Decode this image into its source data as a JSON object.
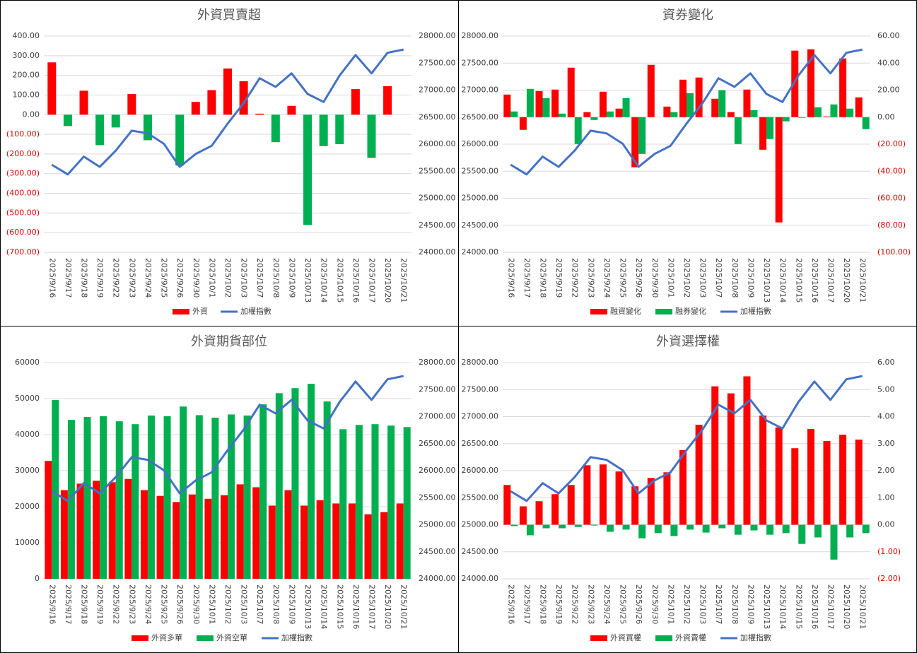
{
  "chart_data": [
    {
      "type": "combo",
      "title": "外資買賣超",
      "grid": true,
      "categories": [
        "2025/9/16",
        "2025/9/17",
        "2025/9/18",
        "2025/9/19",
        "2025/9/22",
        "2025/9/23",
        "2025/9/24",
        "2025/9/25",
        "2025/9/26",
        "2025/9/30",
        "2025/10/1",
        "2025/10/2",
        "2025/10/3",
        "2025/10/7",
        "2025/10/8",
        "2025/10/9",
        "2025/10/13",
        "2025/10/14",
        "2025/10/15",
        "2025/10/16",
        "2025/10/17",
        "2025/10/20",
        "2025/10/21"
      ],
      "ylim": [
        -700,
        400
      ],
      "yticks": [
        {
          "value": -700,
          "label": "(700.00)"
        },
        {
          "value": -600,
          "label": "(600.00)"
        },
        {
          "value": -500,
          "label": "(500.00)"
        },
        {
          "value": -400,
          "label": "(400.00)"
        },
        {
          "value": -300,
          "label": "(300.00)"
        },
        {
          "value": -200,
          "label": "(200.00)"
        },
        {
          "value": -100,
          "label": "(100.00)"
        },
        {
          "value": 0,
          "label": "0.00"
        },
        {
          "value": 100,
          "label": "100.00"
        },
        {
          "value": 200,
          "label": "200.00"
        },
        {
          "value": 300,
          "label": "300.00"
        },
        {
          "value": 400,
          "label": "400.00"
        }
      ],
      "y2lim": [
        24000,
        28000
      ],
      "y2ticks": [
        {
          "value": 24000,
          "label": "24000.00"
        },
        {
          "value": 24500,
          "label": "24500.00"
        },
        {
          "value": 25000,
          "label": "25000.00"
        },
        {
          "value": 25500,
          "label": "25500.00"
        },
        {
          "value": 26000,
          "label": "26000.00"
        },
        {
          "value": 26500,
          "label": "26500.00"
        },
        {
          "value": 27000,
          "label": "27000.00"
        },
        {
          "value": 27500,
          "label": "27500.00"
        },
        {
          "value": 28000,
          "label": "28000.00"
        }
      ],
      "series": [
        {
          "name": "外資",
          "type": "bar",
          "axis": "y",
          "color": "#ff0000",
          "negative_color": "#00b050",
          "values": [
            266,
            -58,
            122,
            -155,
            -65,
            105,
            -130,
            0,
            -259,
            65,
            125,
            235,
            170,
            5,
            -140,
            45,
            -561,
            -160,
            -150,
            130,
            -220,
            145,
            0
          ]
        },
        {
          "name": "加權指數",
          "type": "line",
          "axis": "y2",
          "color": "#4472c4",
          "values": [
            25620,
            25440,
            25770,
            25580,
            25880,
            26250,
            26200,
            26010,
            25580,
            25820,
            25970,
            26380,
            26760,
            27220,
            27060,
            27310,
            26930,
            26780,
            27270,
            27650,
            27310,
            27690,
            27750
          ]
        }
      ]
    },
    {
      "type": "combo",
      "title": "資券變化",
      "grid": true,
      "categories": [
        "2025/9/16",
        "2025/9/17",
        "2025/9/18",
        "2025/9/19",
        "2025/9/22",
        "2025/9/23",
        "2025/9/24",
        "2025/9/25",
        "2025/9/26",
        "2025/9/30",
        "2025/10/1",
        "2025/10/2",
        "2025/10/3",
        "2025/10/7",
        "2025/10/8",
        "2025/10/9",
        "2025/10/13",
        "2025/10/14",
        "2025/10/15",
        "2025/10/16",
        "2025/10/17",
        "2025/10/20",
        "2025/10/21"
      ],
      "ylim": [
        24000,
        28000
      ],
      "yticks": [
        {
          "value": 24000,
          "label": "24000.00"
        },
        {
          "value": 24500,
          "label": "24500.00"
        },
        {
          "value": 25000,
          "label": "25000.00"
        },
        {
          "value": 25500,
          "label": "25500.00"
        },
        {
          "value": 26000,
          "label": "26000.00"
        },
        {
          "value": 26500,
          "label": "26500.00"
        },
        {
          "value": 27000,
          "label": "27000.00"
        },
        {
          "value": 27500,
          "label": "27500.00"
        },
        {
          "value": 28000,
          "label": "28000.00"
        }
      ],
      "y2lim": [
        -100,
        60
      ],
      "y2ticks": [
        {
          "value": -100,
          "label": "(100.00)"
        },
        {
          "value": -80,
          "label": "(80.00)"
        },
        {
          "value": -60,
          "label": "(60.00)"
        },
        {
          "value": -40,
          "label": "(40.00)"
        },
        {
          "value": -20,
          "label": "(20.00)"
        },
        {
          "value": 0,
          "label": "0.00"
        },
        {
          "value": 20,
          "label": "20.00"
        },
        {
          "value": 40,
          "label": "40.00"
        },
        {
          "value": 60,
          "label": "60.00"
        }
      ],
      "series": [
        {
          "name": "融資變化",
          "type": "bar",
          "axis": "y2",
          "color": "#ff0000",
          "values": [
            16.7,
            -9.4,
            19.3,
            20.4,
            36.6,
            3.7,
            18.8,
            6.3,
            -37.1,
            38.7,
            7.8,
            27.7,
            29.3,
            13.6,
            3.7,
            20.4,
            -24.1,
            -77.9,
            49.2,
            50.2,
            0.5,
            43.4,
            14.6
          ]
        },
        {
          "name": "融券變化",
          "type": "bar",
          "axis": "y2",
          "color": "#00b050",
          "values": [
            4.2,
            20.9,
            14.1,
            2.6,
            -19.9,
            -2.1,
            4.2,
            14.1,
            -27.2,
            0,
            3.7,
            17.8,
            0,
            19.9,
            -19.9,
            5.2,
            -16.2,
            -3.1,
            -0.5,
            7.3,
            9.4,
            6.3,
            -8.9
          ]
        },
        {
          "name": "加權指數",
          "type": "line",
          "axis": "y",
          "color": "#4472c4",
          "values": [
            25620,
            25440,
            25770,
            25580,
            25880,
            26250,
            26200,
            26010,
            25580,
            25820,
            25970,
            26380,
            26760,
            27220,
            27060,
            27310,
            26930,
            26780,
            27270,
            27650,
            27310,
            27690,
            27750
          ]
        }
      ]
    },
    {
      "type": "combo",
      "title": "外資期貨部位",
      "grid": true,
      "categories": [
        "2025/9/16",
        "2025/9/17",
        "2025/9/18",
        "2025/9/19",
        "2025/9/22",
        "2025/9/23",
        "2025/9/24",
        "2025/9/25",
        "2025/9/26",
        "2025/9/30",
        "2025/10/1",
        "2025/10/2",
        "2025/10/3",
        "2025/10/7",
        "2025/10/8",
        "2025/10/9",
        "2025/10/13",
        "2025/10/14",
        "2025/10/15",
        "2025/10/16",
        "2025/10/17",
        "2025/10/20",
        "2025/10/21"
      ],
      "ylim": [
        0,
        60000
      ],
      "yticks": [
        0,
        10000,
        20000,
        30000,
        40000,
        50000,
        60000
      ],
      "y2lim": [
        24000,
        28000
      ],
      "y2ticks": [
        {
          "value": 24000,
          "label": "24000.00"
        },
        {
          "value": 24500,
          "label": "24500.00"
        },
        {
          "value": 25000,
          "label": "25000.00"
        },
        {
          "value": 25500,
          "label": "25500.00"
        },
        {
          "value": 26000,
          "label": "26000.00"
        },
        {
          "value": 26500,
          "label": "26500.00"
        },
        {
          "value": 27000,
          "label": "27000.00"
        },
        {
          "value": 27500,
          "label": "27500.00"
        },
        {
          "value": 28000,
          "label": "28000.00"
        }
      ],
      "series": [
        {
          "name": "外資多單",
          "type": "bar",
          "axis": "y",
          "color": "#ff0000",
          "values": [
            32700,
            24600,
            26400,
            27200,
            26800,
            27700,
            24600,
            23000,
            21300,
            23400,
            22200,
            23200,
            26200,
            25400,
            20300,
            24600,
            20300,
            21800,
            20900,
            20900,
            17900,
            18500,
            20900
          ]
        },
        {
          "name": "外資空單",
          "type": "bar",
          "axis": "y",
          "color": "#00b050",
          "values": [
            49600,
            44100,
            44900,
            45100,
            43700,
            42900,
            45300,
            45100,
            47800,
            45400,
            44700,
            45600,
            45300,
            48400,
            51500,
            52900,
            54100,
            49200,
            41500,
            42700,
            42900,
            42500,
            42100
          ]
        },
        {
          "name": "加權指數",
          "type": "line",
          "axis": "y2",
          "color": "#4472c4",
          "values": [
            25620,
            25440,
            25770,
            25580,
            25880,
            26250,
            26200,
            26010,
            25580,
            25820,
            25970,
            26380,
            26760,
            27220,
            27060,
            27310,
            26930,
            26780,
            27270,
            27650,
            27310,
            27690,
            27750
          ]
        }
      ]
    },
    {
      "type": "combo",
      "title": "外資選擇權",
      "grid": true,
      "categories": [
        "2025/9/16",
        "2025/9/17",
        "2025/9/18",
        "2025/9/19",
        "2025/9/22",
        "2025/9/23",
        "2025/9/24",
        "2025/9/25",
        "2025/9/26",
        "2025/9/30",
        "2025/10/1",
        "2025/10/2",
        "2025/10/3",
        "2025/10/7",
        "2025/10/8",
        "2025/10/9",
        "2025/10/13",
        "2025/10/14",
        "2025/10/15",
        "2025/10/16",
        "2025/10/17",
        "2025/10/20",
        "2025/10/21"
      ],
      "ylim": [
        24000,
        28000
      ],
      "yticks": [
        {
          "value": 24000,
          "label": "24000.00"
        },
        {
          "value": 24500,
          "label": "24500.00"
        },
        {
          "value": 25000,
          "label": "25000.00"
        },
        {
          "value": 25500,
          "label": "25500.00"
        },
        {
          "value": 26000,
          "label": "26000.00"
        },
        {
          "value": 26500,
          "label": "26500.00"
        },
        {
          "value": 27000,
          "label": "27000.00"
        },
        {
          "value": 27500,
          "label": "27500.00"
        },
        {
          "value": 28000,
          "label": "28000.00"
        }
      ],
      "y2lim": [
        -2,
        6
      ],
      "y2ticks": [
        {
          "value": -2,
          "label": "(2.00)"
        },
        {
          "value": -1,
          "label": "(1.00)"
        },
        {
          "value": 0,
          "label": "0.00"
        },
        {
          "value": 1,
          "label": "1.00"
        },
        {
          "value": 2,
          "label": "2.00"
        },
        {
          "value": 3,
          "label": "3.00"
        },
        {
          "value": 4,
          "label": "4.00"
        },
        {
          "value": 5,
          "label": "5.00"
        },
        {
          "value": 6,
          "label": "6.00"
        }
      ],
      "series": [
        {
          "name": "外資買權",
          "type": "bar",
          "axis": "y2",
          "color": "#ff0000",
          "values": [
            1.47,
            0.68,
            0.87,
            1.13,
            1.47,
            2.2,
            2.23,
            1.97,
            1.42,
            1.73,
            1.94,
            2.76,
            3.7,
            5.12,
            4.86,
            5.49,
            4.04,
            3.6,
            2.83,
            3.54,
            3.1,
            3.33,
            3.15
          ]
        },
        {
          "name": "外資賣權",
          "type": "bar",
          "axis": "y2",
          "color": "#00b050",
          "values": [
            -0.05,
            -0.39,
            -0.13,
            -0.13,
            -0.08,
            -0.03,
            -0.26,
            -0.18,
            -0.5,
            -0.31,
            -0.42,
            -0.18,
            -0.29,
            -0.13,
            -0.37,
            -0.21,
            -0.37,
            -0.31,
            -0.71,
            -0.47,
            -1.29,
            -0.47,
            -0.31
          ]
        },
        {
          "name": "加權指數",
          "type": "line",
          "axis": "y",
          "color": "#4472c4",
          "values": [
            25620,
            25440,
            25770,
            25580,
            25880,
            26250,
            26200,
            26010,
            25580,
            25820,
            25970,
            26380,
            26760,
            27220,
            27060,
            27310,
            26930,
            26780,
            27270,
            27650,
            27310,
            27690,
            27750
          ]
        }
      ]
    }
  ]
}
